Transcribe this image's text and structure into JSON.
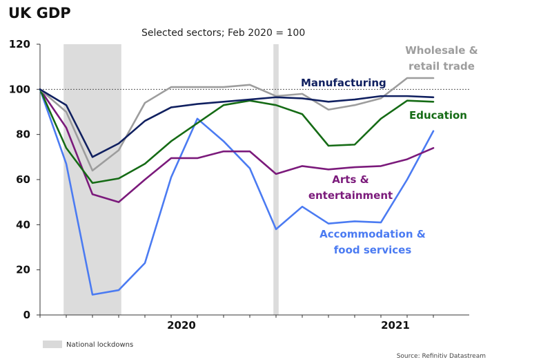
{
  "chart_data": {
    "type": "line",
    "title": "UK GDP",
    "subtitle": "Selected sectors; Feb 2020 = 100",
    "ylim": [
      0,
      120
    ],
    "yticks": [
      0,
      20,
      40,
      60,
      80,
      100,
      120
    ],
    "x_tick_labels": [
      "2020",
      "2021"
    ],
    "x": [
      "2020-02",
      "2020-03",
      "2020-04",
      "2020-05",
      "2020-06",
      "2020-07",
      "2020-08",
      "2020-09",
      "2020-10",
      "2020-11",
      "2020-12",
      "2021-01",
      "2021-02",
      "2021-03",
      "2021-04",
      "2021-05"
    ],
    "reference_line": 100,
    "shaded_periods": [
      [
        "2020-03",
        "2020-05"
      ],
      "2020-11"
    ],
    "series": [
      {
        "name": "Wholesale & retail trade",
        "color": "#9d9d9d",
        "values": [
          100,
          90,
          64,
          73,
          94,
          101,
          101,
          101,
          102,
          97,
          98,
          91,
          93,
          96,
          105,
          105
        ]
      },
      {
        "name": "Manufacturing",
        "color": "#102060",
        "values": [
          100,
          93,
          70,
          76,
          86,
          92,
          93.5,
          94.5,
          95.5,
          96.5,
          96,
          94.5,
          95.5,
          97,
          97,
          96.5
        ]
      },
      {
        "name": "Education",
        "color": "#156b15",
        "values": [
          100,
          74,
          58.5,
          60.5,
          67,
          77,
          85,
          93,
          95,
          93,
          89,
          75,
          75.5,
          87,
          95,
          94.5
        ]
      },
      {
        "name": "Arts & entertainment",
        "color": "#7b1a7b",
        "values": [
          100,
          83,
          53.5,
          50,
          60,
          69.5,
          69.5,
          72.5,
          72.5,
          62.5,
          66,
          64.5,
          65.5,
          66,
          69,
          74
        ]
      },
      {
        "name": "Accommodation & food services",
        "color": "#4b7bf2",
        "values": [
          100,
          67,
          9,
          11,
          23,
          61,
          87,
          77,
          65,
          38,
          48,
          40.5,
          41.5,
          41,
          60,
          81.5
        ]
      }
    ],
    "series_labels": {
      "wholesale": [
        "Wholesale &",
        "retail trade"
      ],
      "manufacturing": "Manufacturing",
      "education": "Education",
      "arts": [
        "Arts &",
        "entertainment"
      ],
      "accommodation": [
        "Accommodation &",
        "food services"
      ]
    },
    "legend": "National lockdowns",
    "source": "Source: Refinitiv Datastream"
  }
}
